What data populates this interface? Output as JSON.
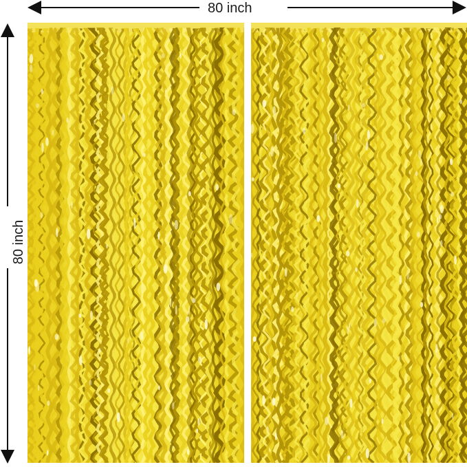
{
  "dimensions": {
    "width_label": "80 inch",
    "height_label": "80 inch"
  },
  "colors": {
    "foil_light": "#f6e84a",
    "foil_mid": "#e9cf1c",
    "foil_dark": "#b39406",
    "foil_shadow": "#8a6f00",
    "header_band": "#f4e15a",
    "arrow": "#111111"
  },
  "curtains": [
    {
      "name": "left-curtain"
    },
    {
      "name": "right-curtain"
    }
  ]
}
